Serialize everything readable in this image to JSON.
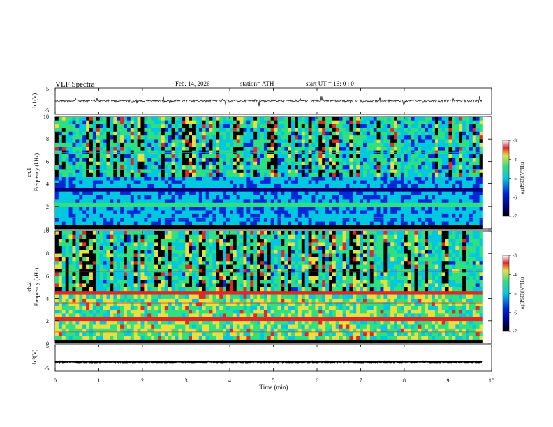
{
  "header": {
    "title": "VLF  Spectra",
    "date": "Feb. 14, 2026",
    "station": "station= ATH",
    "start_ut": "start  UT  =    16: 0   : 0"
  },
  "colors": {
    "black": "#000000",
    "navy": "#00007a",
    "blue": "#0028d8",
    "cyan": "#00c8e0",
    "green": "#2ee080",
    "yellow": "#e8e040",
    "red": "#e02828",
    "white": "#ffffff"
  },
  "chart_data": [
    {
      "type": "line",
      "id": "ch1-waveform",
      "ylabel": "ch.1(V)",
      "yticks": [
        "5",
        "-5"
      ],
      "ylim": [
        -5,
        5
      ],
      "xlim": [
        0,
        10
      ],
      "trace_level": 0.1,
      "x_extent": [
        0,
        9.8
      ]
    },
    {
      "type": "heatmap",
      "id": "ch1-spectrogram",
      "ylabel_top": "ch.1",
      "ylabel": "Frequency  (kHz)",
      "yticks": [
        "0",
        "2",
        "4",
        "6",
        "8",
        "10"
      ],
      "ylim": [
        0,
        10
      ],
      "xlim": [
        0,
        10
      ],
      "x_extent": [
        0,
        9.8
      ],
      "colorbar": {
        "label": "log(PSD)(V²/Hz)",
        "ticks": [
          "-3",
          "-4",
          "-5",
          "-6",
          "-7"
        ],
        "range": [
          -7,
          -3
        ]
      }
    },
    {
      "type": "heatmap",
      "id": "ch2-spectrogram",
      "ylabel_top": "ch.2",
      "ylabel": "Frequency  (kHz)",
      "yticks": [
        "0",
        "2",
        "4",
        "6",
        "8",
        "10"
      ],
      "ylim": [
        0,
        10
      ],
      "xlim": [
        0,
        10
      ],
      "x_extent": [
        0,
        9.8
      ],
      "colorbar": {
        "label": "log(PSD)(V²/Hz)",
        "ticks": [
          "-3",
          "-4",
          "-5",
          "-6",
          "-7"
        ],
        "range": [
          -7,
          -3
        ]
      }
    },
    {
      "type": "line",
      "id": "ch3-waveform",
      "ylabel": "ch.3(V)",
      "yticks": [
        "5",
        "-5"
      ],
      "ylim": [
        -5,
        5
      ],
      "xlim": [
        0,
        10
      ],
      "trace_level": -1.5,
      "x_extent": [
        0,
        9.8
      ],
      "xlabel": "Time  (min)",
      "xticks": [
        "0",
        "1",
        "2",
        "3",
        "4",
        "5",
        "6",
        "7",
        "8",
        "9",
        "10"
      ]
    }
  ]
}
